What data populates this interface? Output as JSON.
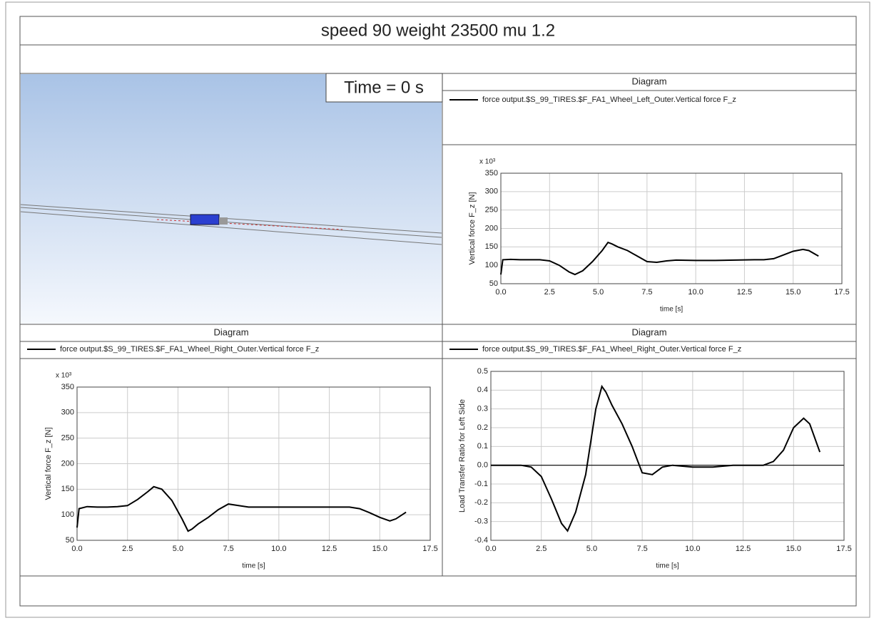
{
  "header": {
    "title": "speed 90 weight 23500 mu 1.2"
  },
  "viewport": {
    "time_label": "Time = 0 s"
  },
  "chart_data": [
    {
      "type": "line",
      "title": "Diagram",
      "y_multiplier": "x 10³",
      "xlabel": "time [s]",
      "ylabel": "Vertical force F_z [N]",
      "x": [
        0,
        0.1,
        0.5,
        1,
        1.5,
        2,
        2.5,
        3,
        3.5,
        3.8,
        4.2,
        4.7,
        5.2,
        5.5,
        5.7,
        6,
        6.5,
        7,
        7.5,
        8,
        8.5,
        9,
        10,
        11,
        12,
        13,
        13.5,
        14,
        14.5,
        15,
        15.5,
        15.8,
        16.3
      ],
      "series": [
        {
          "name": "force output.$S_99_TIRES.$F_FA1_Wheel_Left_Outer.Vertical force F_z",
          "color": "#000000",
          "values": [
            75,
            115,
            116,
            115,
            115,
            115,
            112,
            100,
            82,
            75,
            85,
            110,
            140,
            162,
            158,
            150,
            140,
            125,
            110,
            108,
            112,
            114,
            113,
            113,
            114,
            115,
            115,
            118,
            128,
            138,
            143,
            140,
            125
          ]
        }
      ],
      "xlim": [
        0,
        17.5
      ],
      "xticks": [
        {
          "value": 0,
          "label": "0.0"
        },
        2.5,
        {
          "value": 5,
          "label": "5.0"
        },
        7.5,
        {
          "value": 10,
          "label": "10.0"
        },
        12.5,
        {
          "value": 15,
          "label": "15.0"
        },
        17.5
      ],
      "ylim": [
        50,
        350
      ],
      "yticks": [
        50,
        100,
        150,
        200,
        250,
        300,
        350
      ],
      "grid": true
    },
    {
      "type": "line",
      "title": "Diagram",
      "y_multiplier": "x 10³",
      "xlabel": "time [s]",
      "ylabel": "Vertical force F_z [N]",
      "x": [
        0,
        0.1,
        0.5,
        1,
        1.5,
        2,
        2.5,
        3,
        3.5,
        3.8,
        4.2,
        4.7,
        5.2,
        5.5,
        5.7,
        6,
        6.5,
        7,
        7.5,
        8,
        8.5,
        9,
        10,
        11,
        12,
        13,
        13.5,
        14,
        14.5,
        15,
        15.5,
        15.8,
        16.3
      ],
      "series": [
        {
          "name": "force output.$S_99_TIRES.$F_FA1_Wheel_Right_Outer.Vertical force F_z",
          "color": "#000000",
          "values": [
            75,
            112,
            116,
            115,
            115,
            116,
            118,
            130,
            145,
            155,
            150,
            128,
            92,
            68,
            72,
            82,
            95,
            110,
            121,
            118,
            115,
            115,
            115,
            115,
            115,
            115,
            115,
            112,
            104,
            95,
            88,
            92,
            105
          ]
        }
      ],
      "xlim": [
        0,
        17.5
      ],
      "xticks": [
        {
          "value": 0,
          "label": "0.0"
        },
        2.5,
        {
          "value": 5,
          "label": "5.0"
        },
        7.5,
        {
          "value": 10,
          "label": "10.0"
        },
        12.5,
        {
          "value": 15,
          "label": "15.0"
        },
        17.5
      ],
      "ylim": [
        50,
        350
      ],
      "yticks": [
        50,
        100,
        150,
        200,
        250,
        300,
        350
      ],
      "grid": true
    },
    {
      "type": "line",
      "title": "Diagram",
      "xlabel": "time [s]",
      "ylabel": "Load Transfer Ratio for Left Side",
      "x": [
        0,
        0.5,
        1,
        1.5,
        2,
        2.5,
        3,
        3.5,
        3.8,
        4.2,
        4.7,
        5.2,
        5.5,
        5.7,
        6,
        6.5,
        7,
        7.5,
        8,
        8.5,
        9,
        10,
        11,
        12,
        13,
        13.5,
        14,
        14.5,
        15,
        15.5,
        15.8,
        16.3
      ],
      "series": [
        {
          "name": "force output.$S_99_TIRES.$F_FA1_Wheel_Right_Outer.Vertical force F_z",
          "color": "#000000",
          "values": [
            0,
            0,
            0,
            0,
            -0.01,
            -0.06,
            -0.18,
            -0.31,
            -0.35,
            -0.25,
            -0.05,
            0.3,
            0.42,
            0.39,
            0.32,
            0.22,
            0.1,
            -0.04,
            -0.05,
            -0.01,
            0,
            -0.01,
            -0.01,
            0,
            0,
            0,
            0.02,
            0.08,
            0.2,
            0.25,
            0.22,
            0.07
          ]
        }
      ],
      "xlim": [
        0,
        17.5
      ],
      "xticks": [
        {
          "value": 0,
          "label": "0.0"
        },
        2.5,
        {
          "value": 5,
          "label": "5.0"
        },
        7.5,
        {
          "value": 10,
          "label": "10.0"
        },
        12.5,
        {
          "value": 15,
          "label": "15.0"
        },
        17.5
      ],
      "ylim": [
        -0.4,
        0.5
      ],
      "yticks": [
        -0.4,
        -0.3,
        -0.2,
        -0.1,
        {
          "value": 0,
          "label": "0.0"
        },
        0.1,
        0.2,
        0.3,
        0.4,
        0.5
      ],
      "grid": true,
      "zero_line": true
    }
  ]
}
